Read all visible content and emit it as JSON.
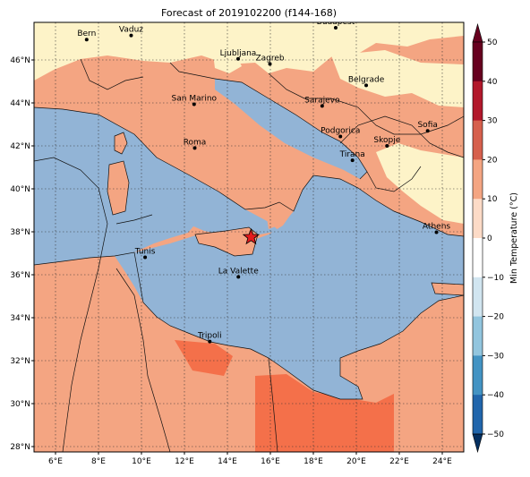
{
  "title": "Forecast of 2019102200 (f144-168)",
  "map": {
    "lon_range": [
      5,
      25
    ],
    "lat_range": [
      27.75,
      47.75
    ],
    "lon_ticks": [
      "6°E",
      "8°E",
      "10°E",
      "12°E",
      "14°E",
      "16°E",
      "18°E",
      "20°E",
      "22°E",
      "24°E"
    ],
    "lat_ticks": [
      "28°N",
      "30°N",
      "32°N",
      "34°N",
      "36°N",
      "38°N",
      "40°N",
      "42°N",
      "44°N",
      "46°N"
    ],
    "grid": "dotted",
    "marker": {
      "type": "star",
      "color": "#e41a1c",
      "lon": 15.1,
      "lat": 37.75
    }
  },
  "cities": [
    {
      "name": "Bern",
      "lon": 7.45,
      "lat": 46.95
    },
    {
      "name": "Vaduz",
      "lon": 9.52,
      "lat": 47.14
    },
    {
      "name": "Budapest",
      "lon": 19.04,
      "lat": 47.5
    },
    {
      "name": "Ljubljana",
      "lon": 14.5,
      "lat": 46.05
    },
    {
      "name": "Zagreb",
      "lon": 15.98,
      "lat": 45.81
    },
    {
      "name": "San Marino",
      "lon": 12.45,
      "lat": 43.94
    },
    {
      "name": "Belgrade",
      "lon": 20.46,
      "lat": 44.82
    },
    {
      "name": "Sarajevo",
      "lon": 18.41,
      "lat": 43.86
    },
    {
      "name": "Sofia",
      "lon": 23.32,
      "lat": 42.7
    },
    {
      "name": "Roma",
      "lon": 12.48,
      "lat": 41.9
    },
    {
      "name": "Podgorica",
      "lon": 19.26,
      "lat": 42.44
    },
    {
      "name": "Skopje",
      "lon": 21.43,
      "lat": 42.0
    },
    {
      "name": "Tirana",
      "lon": 19.82,
      "lat": 41.33
    },
    {
      "name": "Athens",
      "lon": 23.73,
      "lat": 37.98
    },
    {
      "name": "Tunis",
      "lon": 10.17,
      "lat": 36.81
    },
    {
      "name": "La Valette",
      "lon": 14.51,
      "lat": 35.9
    },
    {
      "name": "Tripoli",
      "lon": 13.18,
      "lat": 32.89
    }
  ],
  "colorbar": {
    "label": "Min Temperature (°C)",
    "ticks": [
      "50",
      "40",
      "30",
      "20",
      "10",
      "0",
      "−10",
      "−20",
      "−30",
      "−40",
      "−50"
    ],
    "colors": [
      "#67001f",
      "#b2182b",
      "#d6604d",
      "#f4a582",
      "#fddbc7",
      "#ffffff",
      "#d1e5f0",
      "#92c5de",
      "#4393c3",
      "#2166ac",
      "#053061"
    ]
  }
}
